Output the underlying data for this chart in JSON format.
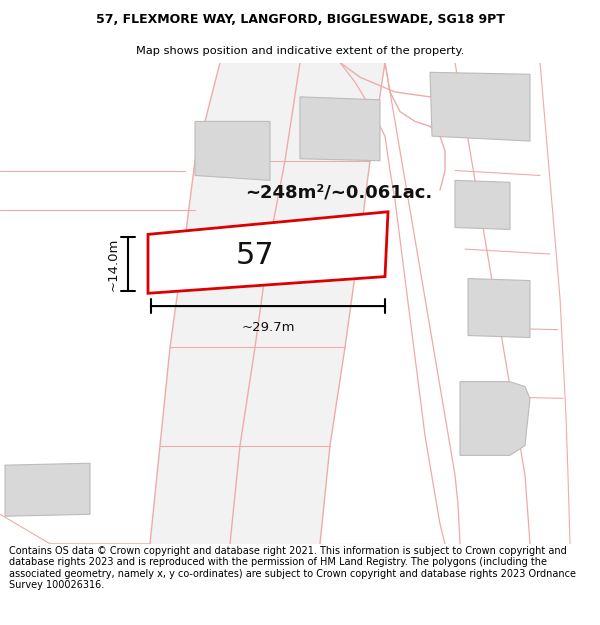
{
  "title_line1": "57, FLEXMORE WAY, LANGFORD, BIGGLESWADE, SG18 9PT",
  "title_line2": "Map shows position and indicative extent of the property.",
  "footer_text": "Contains OS data © Crown copyright and database right 2021. This information is subject to Crown copyright and database rights 2023 and is reproduced with the permission of HM Land Registry. The polygons (including the associated geometry, namely x, y co-ordinates) are subject to Crown copyright and database rights 2023 Ordnance Survey 100026316.",
  "map_bg": "#ffffff",
  "plot_color": "#dd0000",
  "road_color": "#f0aaaa",
  "building_color": "#d8d8d8",
  "building_edge": "#cccccc",
  "annotation_area": "~248m²/~0.061ac.",
  "annotation_width": "~29.7m",
  "annotation_height": "~14.0m",
  "plot_number": "57",
  "title_fontsize": 9,
  "footer_fontsize": 7.5
}
